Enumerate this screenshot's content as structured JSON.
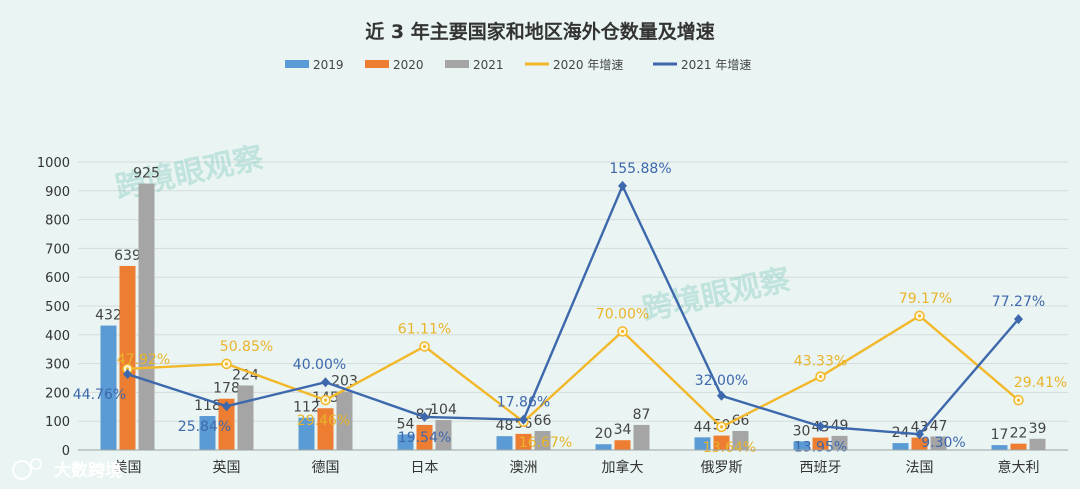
{
  "chart_data": {
    "type": "bar",
    "title": "近 3 年主要国家和地区海外仓数量及增速",
    "categories": [
      "美国",
      "英国",
      "德国",
      "日本",
      "澳洲",
      "加拿大",
      "俄罗斯",
      "西班牙",
      "法国",
      "意大利"
    ],
    "ylim": [
      0,
      1000
    ],
    "yticks": [
      0,
      100,
      200,
      300,
      400,
      500,
      600,
      700,
      800,
      900,
      1000
    ],
    "y2lim": [
      0,
      1.7
    ],
    "grid": true,
    "legend_position": "top",
    "series": [
      {
        "name": "2019",
        "kind": "bar",
        "color": "#5b9bd5",
        "values": [
          432,
          118,
          112,
          54,
          48,
          20,
          44,
          30,
          24,
          17
        ]
      },
      {
        "name": "2020",
        "kind": "bar",
        "color": "#ed7d31",
        "values": [
          639,
          178,
          145,
          87,
          56,
          34,
          50,
          43,
          43,
          22
        ]
      },
      {
        "name": "2021",
        "kind": "bar",
        "color": "#a5a5a5",
        "values": [
          925,
          224,
          203,
          104,
          66,
          87,
          66,
          49,
          47,
          39
        ]
      },
      {
        "name": "2020 年增速",
        "kind": "line",
        "color": "#f2b829",
        "marker": "circle",
        "values": [
          47.92,
          50.85,
          29.46,
          61.11,
          16.67,
          70.0,
          13.64,
          43.33,
          79.17,
          29.41
        ],
        "labels": [
          "47.92%",
          "50.85%",
          "29.46%",
          "61.11%",
          "16.67%",
          "70.00%",
          "13.64%",
          "43.33%",
          "79.17%",
          "29.41%"
        ]
      },
      {
        "name": "2021 年增速",
        "kind": "line",
        "color": "#3d68ac",
        "marker": "diamond",
        "values": [
          44.76,
          25.84,
          40.0,
          19.54,
          17.86,
          155.88,
          32.0,
          13.95,
          9.3,
          77.27
        ],
        "labels": [
          "44.76%",
          "25.84%",
          "40.00%",
          "19.54%",
          "17.86%",
          "155.88%",
          "32.00%",
          "13.95%",
          "9.30%",
          "77.27%"
        ]
      }
    ]
  },
  "watermark": "跨境眼观察",
  "corner_logo": "大数跨境",
  "corner_icon": "weibo-icon"
}
